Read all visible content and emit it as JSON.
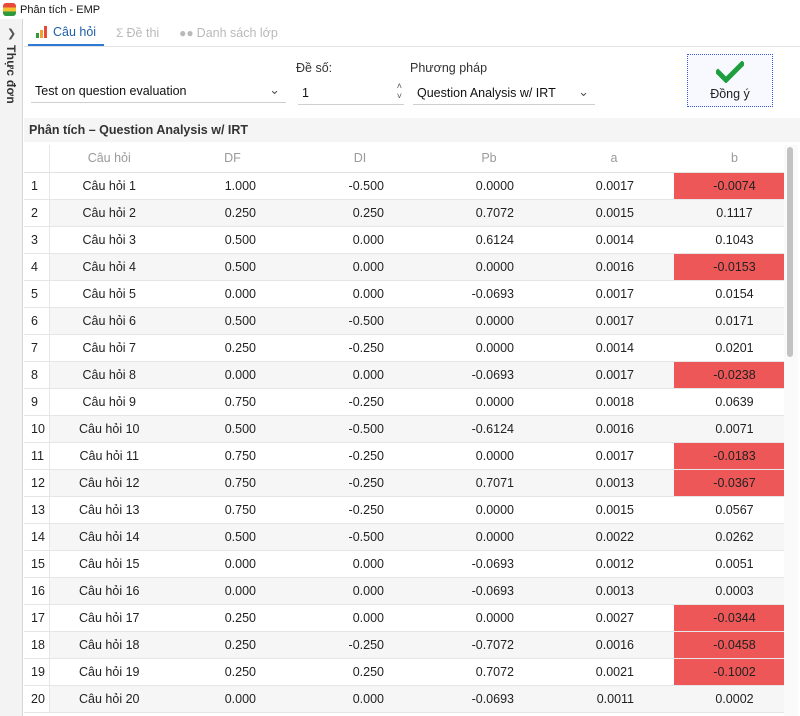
{
  "window": {
    "title": "Phân tích - EMP"
  },
  "side_menu": {
    "label": "Thực đơn"
  },
  "tabs": [
    {
      "label": "Câu hỏi",
      "active": true,
      "icon": "bar-chart-icon"
    },
    {
      "label": "Đề thi",
      "active": false,
      "icon": "sigma-icon"
    },
    {
      "label": "Danh sách lớp",
      "active": false,
      "icon": "users-icon"
    }
  ],
  "toolbar": {
    "test_value": "Test on question evaluation",
    "exam_no_label": "Đề số:",
    "exam_no_value": "1",
    "method_label": "Phương pháp",
    "method_value": "Question Analysis w/ IRT",
    "ok_label": "Đồng ý"
  },
  "section": {
    "title": "Phân tích – Question Analysis w/ IRT"
  },
  "table": {
    "columns": [
      "",
      "Câu hỏi",
      "DF",
      "DI",
      "Pb",
      "a",
      "b"
    ],
    "rows": [
      [
        "1",
        "Câu hỏi 1",
        "1.000",
        "-0.500",
        "0.0000",
        "0.0017",
        "-0.0074"
      ],
      [
        "2",
        "Câu hỏi 2",
        "0.250",
        "0.250",
        "0.7072",
        "0.0015",
        "0.1117"
      ],
      [
        "3",
        "Câu hỏi 3",
        "0.500",
        "0.000",
        "0.6124",
        "0.0014",
        "0.1043"
      ],
      [
        "4",
        "Câu hỏi 4",
        "0.500",
        "0.000",
        "0.0000",
        "0.0016",
        "-0.0153"
      ],
      [
        "5",
        "Câu hỏi 5",
        "0.000",
        "0.000",
        "-0.0693",
        "0.0017",
        "0.0154"
      ],
      [
        "6",
        "Câu hỏi 6",
        "0.500",
        "-0.500",
        "0.0000",
        "0.0017",
        "0.0171"
      ],
      [
        "7",
        "Câu hỏi 7",
        "0.250",
        "-0.250",
        "0.0000",
        "0.0014",
        "0.0201"
      ],
      [
        "8",
        "Câu hỏi 8",
        "0.000",
        "0.000",
        "-0.0693",
        "0.0017",
        "-0.0238"
      ],
      [
        "9",
        "Câu hỏi 9",
        "0.750",
        "-0.250",
        "0.0000",
        "0.0018",
        "0.0639"
      ],
      [
        "10",
        "Câu hỏi 10",
        "0.500",
        "-0.500",
        "-0.6124",
        "0.0016",
        "0.0071"
      ],
      [
        "11",
        "Câu hỏi 11",
        "0.750",
        "-0.250",
        "0.0000",
        "0.0017",
        "-0.0183"
      ],
      [
        "12",
        "Câu hỏi 12",
        "0.750",
        "-0.250",
        "0.7071",
        "0.0013",
        "-0.0367"
      ],
      [
        "13",
        "Câu hỏi 13",
        "0.750",
        "-0.250",
        "0.0000",
        "0.0015",
        "0.0567"
      ],
      [
        "14",
        "Câu hỏi 14",
        "0.500",
        "-0.500",
        "0.0000",
        "0.0022",
        "0.0262"
      ],
      [
        "15",
        "Câu hỏi 15",
        "0.000",
        "0.000",
        "-0.0693",
        "0.0012",
        "0.0051"
      ],
      [
        "16",
        "Câu hỏi 16",
        "0.000",
        "0.000",
        "-0.0693",
        "0.0013",
        "0.0003"
      ],
      [
        "17",
        "Câu hỏi 17",
        "0.250",
        "0.000",
        "0.0000",
        "0.0027",
        "-0.0344"
      ],
      [
        "18",
        "Câu hỏi 18",
        "0.250",
        "-0.250",
        "-0.7072",
        "0.0016",
        "-0.0458"
      ],
      [
        "19",
        "Câu hỏi 19",
        "0.250",
        "0.250",
        "0.7072",
        "0.0021",
        "-0.1002"
      ],
      [
        "20",
        "Câu hỏi 20",
        "0.000",
        "0.000",
        "-0.0693",
        "0.0011",
        "0.0002"
      ]
    ]
  },
  "colors": {
    "negative_highlight": "#ee5757",
    "accent": "#2f7ad6",
    "ok_check": "#1e9e3e"
  }
}
